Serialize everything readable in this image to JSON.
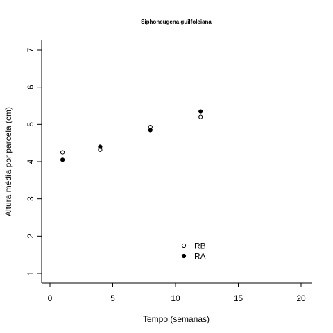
{
  "chart_data": {
    "type": "scatter",
    "title": "Siphoneugena guilfoleiana",
    "xlabel": "Tempo (semanas)",
    "ylabel": "Altura média por parcela (cm)",
    "xlim": [
      0,
      20
    ],
    "ylim": [
      1,
      7
    ],
    "x_ticks": [
      "0",
      "5",
      "10",
      "15",
      "20"
    ],
    "y_ticks": [
      "1",
      "2",
      "3",
      "4",
      "5",
      "6",
      "7"
    ],
    "grid": false,
    "legend_position": "bottom-center",
    "series": [
      {
        "name": "RB",
        "marker": "open-circle",
        "color": "#000000",
        "x": [
          1,
          4,
          8,
          12
        ],
        "y": [
          4.25,
          4.32,
          4.93,
          5.2
        ]
      },
      {
        "name": "RA",
        "marker": "filled-circle",
        "color": "#000000",
        "x": [
          1,
          4,
          8,
          12
        ],
        "y": [
          4.05,
          4.4,
          4.85,
          5.35
        ]
      }
    ]
  }
}
